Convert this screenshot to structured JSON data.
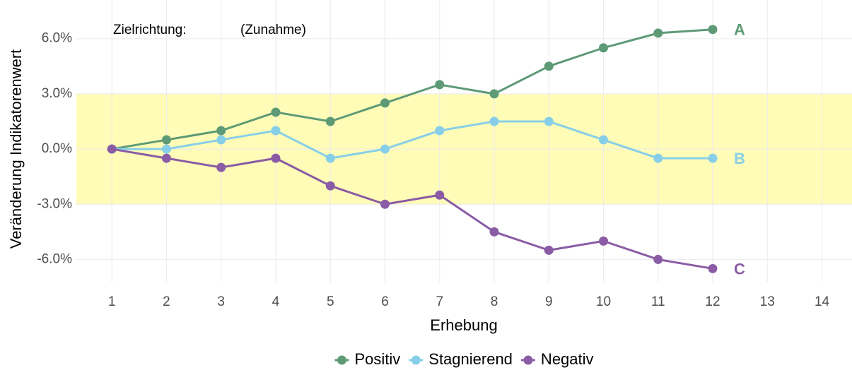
{
  "chart_data": {
    "type": "line",
    "annotations": [
      "Zielrichtung:",
      "(Zunahme)"
    ],
    "x_label": "Erhebung",
    "y_label": "Veränderung Indikatorenwert",
    "x": [
      1,
      2,
      3,
      4,
      5,
      6,
      7,
      8,
      9,
      10,
      11,
      12
    ],
    "series": [
      {
        "name": "Positiv",
        "label": "A",
        "color": "#5e9a76",
        "values": [
          0,
          0.5,
          1,
          2,
          1.5,
          2.5,
          3.5,
          3,
          4.5,
          5.5,
          6.3,
          6.5
        ]
      },
      {
        "name": "Stagnierend",
        "label": "B",
        "color": "#87cfe8",
        "values": [
          0,
          0,
          0.5,
          1,
          -0.5,
          0,
          1,
          1.5,
          1.5,
          0.5,
          -0.5,
          -0.5
        ]
      },
      {
        "name": "Negativ",
        "label": "C",
        "color": "#8a5ca5",
        "values": [
          0,
          -0.5,
          -1,
          -0.5,
          -2,
          -3,
          -2.5,
          -4.5,
          -5.5,
          -5,
          -6,
          -6.5
        ]
      }
    ],
    "band": [
      -3,
      3
    ],
    "band_color": "#fffcb8",
    "xlim": [
      0.35,
      14.55
    ],
    "xticks": [
      1,
      2,
      3,
      4,
      5,
      6,
      7,
      8,
      9,
      10,
      11,
      12,
      13,
      14
    ],
    "ylim": [
      -7.25,
      8.1
    ],
    "yticks": [
      {
        "value": -6,
        "label": "-6.0%"
      },
      {
        "value": -3,
        "label": "-3.0%"
      },
      {
        "value": 0,
        "label": "0.0%"
      },
      {
        "value": 3,
        "label": "3.0%"
      },
      {
        "value": 6,
        "label": "6.0%"
      }
    ],
    "grid": true,
    "legend": "bottom"
  }
}
